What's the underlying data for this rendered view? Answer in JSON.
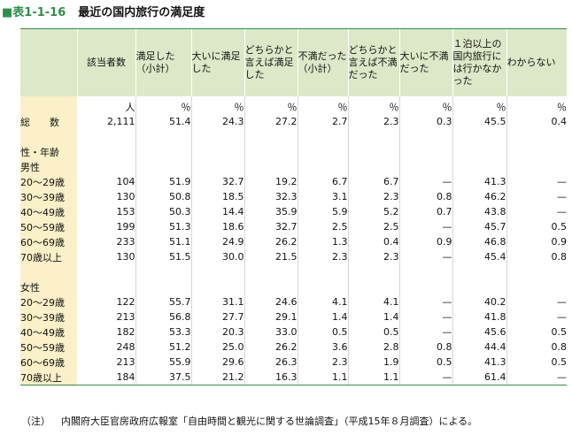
{
  "title": {
    "tag": "■表1-1-16",
    "text": "最近の国内旅行の満足度"
  },
  "headers": [
    "",
    "該当者数",
    "満足した（小計）",
    "大いに満足した",
    "どちらかと言えば満足した",
    "不満だった（小計）",
    "どちらかと言えば不満だった",
    "大いに不満だった",
    "１泊以上の国内旅行には行かなかった",
    "わからない"
  ],
  "units": [
    "",
    "人",
    "％",
    "％",
    "％",
    "％",
    "％",
    "％",
    "％",
    "％"
  ],
  "rows": [
    {
      "label": "総　　数",
      "values": [
        "2,111",
        "51.4",
        "24.3",
        "27.2",
        "2.7",
        "2.3",
        "0.3",
        "45.5",
        "0.4"
      ]
    },
    {
      "label": "",
      "values": [
        "",
        "",
        "",
        "",
        "",
        "",
        "",
        "",
        ""
      ]
    },
    {
      "label": "性・年齢",
      "values": [
        "",
        "",
        "",
        "",
        "",
        "",
        "",
        "",
        ""
      ]
    },
    {
      "label": "男性",
      "values": [
        "",
        "",
        "",
        "",
        "",
        "",
        "",
        "",
        ""
      ]
    },
    {
      "label": "20～29歳",
      "values": [
        "104",
        "51.9",
        "32.7",
        "19.2",
        "6.7",
        "6.7",
        "—",
        "41.3",
        "—"
      ]
    },
    {
      "label": "30～39歳",
      "values": [
        "130",
        "50.8",
        "18.5",
        "32.3",
        "3.1",
        "2.3",
        "0.8",
        "46.2",
        "—"
      ]
    },
    {
      "label": "40～49歳",
      "values": [
        "153",
        "50.3",
        "14.4",
        "35.9",
        "5.9",
        "5.2",
        "0.7",
        "43.8",
        "—"
      ]
    },
    {
      "label": "50～59歳",
      "values": [
        "199",
        "51.3",
        "18.6",
        "32.7",
        "2.5",
        "2.5",
        "—",
        "45.7",
        "0.5"
      ]
    },
    {
      "label": "60～69歳",
      "values": [
        "233",
        "51.1",
        "24.9",
        "26.2",
        "1.3",
        "0.4",
        "0.9",
        "46.8",
        "0.9"
      ]
    },
    {
      "label": "70歳以上",
      "values": [
        "130",
        "51.5",
        "30.0",
        "21.5",
        "2.3",
        "2.3",
        "—",
        "45.4",
        "0.8"
      ]
    },
    {
      "label": "",
      "values": [
        "",
        "",
        "",
        "",
        "",
        "",
        "",
        "",
        ""
      ]
    },
    {
      "label": "女性",
      "values": [
        "",
        "",
        "",
        "",
        "",
        "",
        "",
        "",
        ""
      ]
    },
    {
      "label": "20～29歳",
      "values": [
        "122",
        "55.7",
        "31.1",
        "24.6",
        "4.1",
        "4.1",
        "—",
        "40.2",
        "—"
      ]
    },
    {
      "label": "30～39歳",
      "values": [
        "213",
        "56.8",
        "27.7",
        "29.1",
        "1.4",
        "1.4",
        "—",
        "41.8",
        "—"
      ]
    },
    {
      "label": "40～49歳",
      "values": [
        "182",
        "53.3",
        "20.3",
        "33.0",
        "0.5",
        "0.5",
        "—",
        "45.6",
        "0.5"
      ]
    },
    {
      "label": "50～59歳",
      "values": [
        "248",
        "51.2",
        "25.0",
        "26.2",
        "3.6",
        "2.8",
        "0.8",
        "44.4",
        "0.8"
      ]
    },
    {
      "label": "60～69歳",
      "values": [
        "213",
        "55.9",
        "29.6",
        "26.3",
        "2.3",
        "1.9",
        "0.5",
        "41.3",
        "0.5"
      ]
    },
    {
      "label": "70歳以上",
      "values": [
        "184",
        "37.5",
        "21.2",
        "16.3",
        "1.1",
        "1.1",
        "—",
        "61.4",
        "—"
      ]
    }
  ],
  "note": {
    "prefix": "（注）",
    "text": "内閣府大臣官房政府広報室「自由時間と観光に関する世論調査」（平成15年８月調査）による。"
  }
}
